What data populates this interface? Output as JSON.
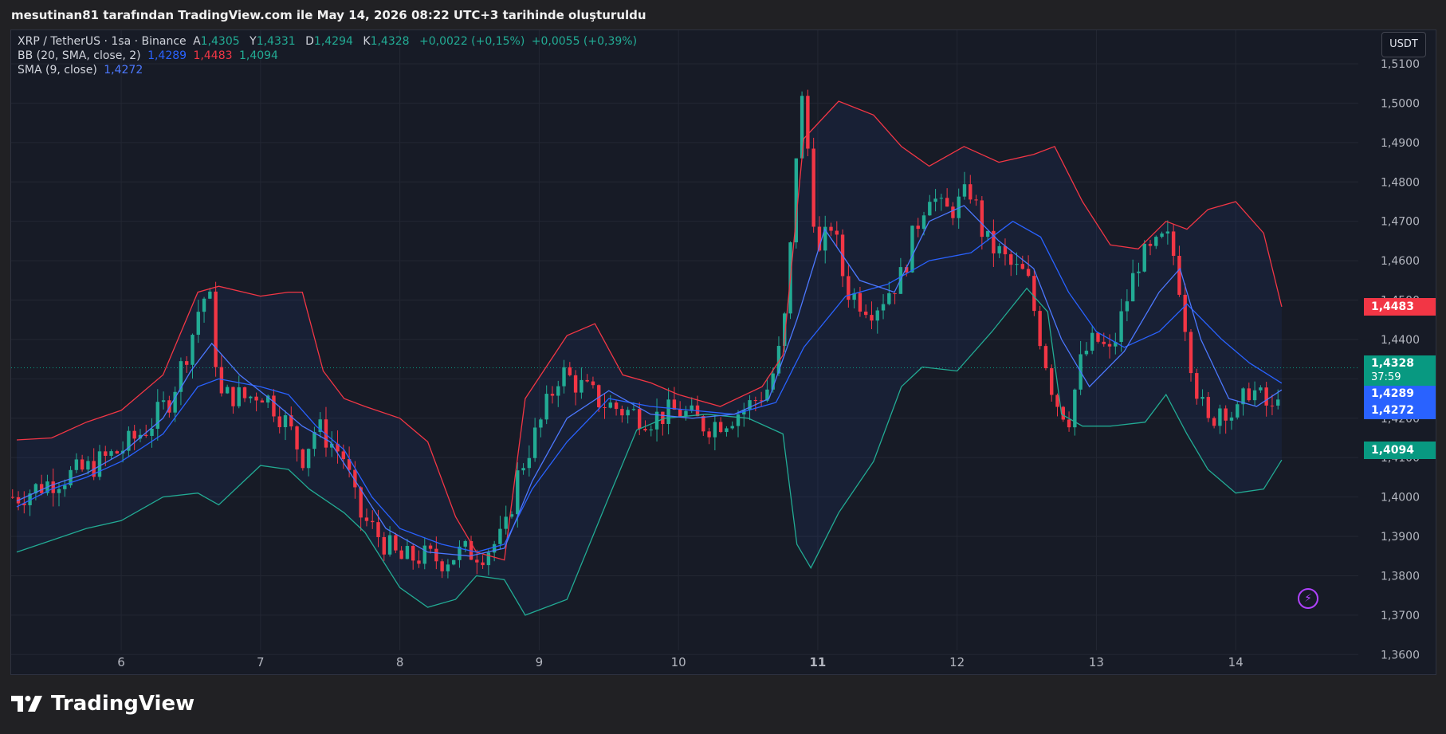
{
  "header": {
    "created_by": "mesutinan81 tarafından TradingView.com ile May 14, 2026 08:22 UTC+3 tarihinde oluşturuldu"
  },
  "legend": {
    "symbol": "XRP / TetherUS · 1sa · Binance",
    "o_label": "A",
    "o_value": "1,4305",
    "h_label": "Y",
    "h_value": "1,4331",
    "l_label": "D",
    "l_value": "1,4294",
    "c_label": "K",
    "c_value": "1,4328",
    "change": "+0,0022 (+0,15%)",
    "change2": "+0,0055 (+0,39%)",
    "bb_label": "BB (20, SMA, close, 2)",
    "bb_basis": "1,4289",
    "bb_upper": "1,4483",
    "bb_lower": "1,4094",
    "sma_label": "SMA (9, close)",
    "sma_value": "1,4272"
  },
  "currency_button": "USDT",
  "price_labels": {
    "upper": "1,4483",
    "last": "1,4328",
    "countdown": "37:59",
    "basis": "1,4289",
    "sma": "1,4272",
    "lower": "1,4094"
  },
  "brand": {
    "name": "TradingView"
  },
  "colors": {
    "up": "#22ab94",
    "down": "#f23645",
    "bb_basis": "#2962ff",
    "sma": "#4c78ff",
    "bb_upper": "#f23645",
    "bb_lower": "#22ab94"
  },
  "chart_data": {
    "type": "candlestick",
    "symbol": "XRP / TetherUS",
    "interval": "1sa",
    "exchange": "Binance",
    "yticks": [
      "1,3600",
      "1,3700",
      "1,3800",
      "1,3900",
      "1,4000",
      "1,4100",
      "1,4200",
      "1,4300",
      "1,4400",
      "1,4500",
      "1,4600",
      "1,4700",
      "1,4800",
      "1,4900",
      "1,5000",
      "1,5100"
    ],
    "ylim": [
      1.355,
      1.5185
    ],
    "xticks": [
      "6",
      "7",
      "8",
      "9",
      "10",
      "11",
      "12",
      "13",
      "14"
    ],
    "grid": true,
    "last_close": 1.4328,
    "close_path": [
      [
        5.25,
        1.4
      ],
      [
        5.5,
        1.404
      ],
      [
        5.75,
        1.407
      ],
      [
        6.0,
        1.412
      ],
      [
        6.2,
        1.418
      ],
      [
        6.35,
        1.425
      ],
      [
        6.5,
        1.44
      ],
      [
        6.58,
        1.451
      ],
      [
        6.65,
        1.449
      ],
      [
        6.7,
        1.425
      ],
      [
        6.8,
        1.426
      ],
      [
        6.9,
        1.425
      ],
      [
        7.0,
        1.427
      ],
      [
        7.1,
        1.423
      ],
      [
        7.2,
        1.418
      ],
      [
        7.3,
        1.41
      ],
      [
        7.4,
        1.418
      ],
      [
        7.5,
        1.414
      ],
      [
        7.6,
        1.41
      ],
      [
        7.7,
        1.396
      ],
      [
        7.8,
        1.392
      ],
      [
        7.9,
        1.388
      ],
      [
        8.0,
        1.384
      ],
      [
        8.15,
        1.385
      ],
      [
        8.3,
        1.384
      ],
      [
        8.45,
        1.386
      ],
      [
        8.6,
        1.386
      ],
      [
        8.75,
        1.39
      ],
      [
        8.85,
        1.406
      ],
      [
        9.0,
        1.418
      ],
      [
        9.15,
        1.432
      ],
      [
        9.3,
        1.428
      ],
      [
        9.45,
        1.424
      ],
      [
        9.6,
        1.422
      ],
      [
        9.8,
        1.42
      ],
      [
        10.0,
        1.422
      ],
      [
        10.2,
        1.418
      ],
      [
        10.35,
        1.42
      ],
      [
        10.5,
        1.423
      ],
      [
        10.65,
        1.428
      ],
      [
        10.75,
        1.44
      ],
      [
        10.82,
        1.47
      ],
      [
        10.87,
        1.505
      ],
      [
        10.93,
        1.488
      ],
      [
        11.0,
        1.46
      ],
      [
        11.1,
        1.47
      ],
      [
        11.2,
        1.453
      ],
      [
        11.3,
        1.45
      ],
      [
        11.4,
        1.448
      ],
      [
        11.5,
        1.452
      ],
      [
        11.6,
        1.456
      ],
      [
        11.7,
        1.468
      ],
      [
        11.8,
        1.478
      ],
      [
        11.9,
        1.472
      ],
      [
        12.0,
        1.474
      ],
      [
        12.1,
        1.478
      ],
      [
        12.2,
        1.465
      ],
      [
        12.3,
        1.462
      ],
      [
        12.4,
        1.458
      ],
      [
        12.5,
        1.456
      ],
      [
        12.6,
        1.44
      ],
      [
        12.7,
        1.425
      ],
      [
        12.8,
        1.42
      ],
      [
        12.9,
        1.436
      ],
      [
        13.0,
        1.44
      ],
      [
        13.1,
        1.436
      ],
      [
        13.2,
        1.448
      ],
      [
        13.3,
        1.46
      ],
      [
        13.4,
        1.462
      ],
      [
        13.5,
        1.466
      ],
      [
        13.57,
        1.46
      ],
      [
        13.63,
        1.446
      ],
      [
        13.7,
        1.43
      ],
      [
        13.8,
        1.418
      ],
      [
        13.9,
        1.424
      ],
      [
        14.0,
        1.42
      ],
      [
        14.1,
        1.428
      ],
      [
        14.2,
        1.424
      ],
      [
        14.27,
        1.421
      ],
      [
        14.33,
        1.4328
      ]
    ],
    "bb_upper_path": [
      [
        5.25,
        1.4145
      ],
      [
        5.5,
        1.415
      ],
      [
        5.75,
        1.419
      ],
      [
        6.0,
        1.422
      ],
      [
        6.3,
        1.431
      ],
      [
        6.55,
        1.452
      ],
      [
        6.7,
        1.4535
      ],
      [
        7.0,
        1.451
      ],
      [
        7.2,
        1.452
      ],
      [
        7.3,
        1.452
      ],
      [
        7.45,
        1.432
      ],
      [
        7.6,
        1.425
      ],
      [
        7.75,
        1.423
      ],
      [
        8.0,
        1.42
      ],
      [
        8.2,
        1.414
      ],
      [
        8.4,
        1.395
      ],
      [
        8.55,
        1.386
      ],
      [
        8.75,
        1.384
      ],
      [
        8.9,
        1.425
      ],
      [
        9.2,
        1.441
      ],
      [
        9.4,
        1.444
      ],
      [
        9.6,
        1.431
      ],
      [
        9.8,
        1.429
      ],
      [
        10.0,
        1.426
      ],
      [
        10.3,
        1.423
      ],
      [
        10.6,
        1.428
      ],
      [
        10.75,
        1.436
      ],
      [
        10.9,
        1.491
      ],
      [
        11.15,
        1.5005
      ],
      [
        11.4,
        1.497
      ],
      [
        11.6,
        1.489
      ],
      [
        11.8,
        1.484
      ],
      [
        12.05,
        1.489
      ],
      [
        12.3,
        1.485
      ],
      [
        12.55,
        1.487
      ],
      [
        12.7,
        1.489
      ],
      [
        12.9,
        1.475
      ],
      [
        13.1,
        1.464
      ],
      [
        13.3,
        1.463
      ],
      [
        13.5,
        1.47
      ],
      [
        13.65,
        1.468
      ],
      [
        13.8,
        1.473
      ],
      [
        14.0,
        1.475
      ],
      [
        14.2,
        1.467
      ],
      [
        14.33,
        1.4483
      ]
    ],
    "bb_lower_path": [
      [
        5.25,
        1.386
      ],
      [
        5.5,
        1.389
      ],
      [
        5.75,
        1.392
      ],
      [
        6.0,
        1.394
      ],
      [
        6.3,
        1.4
      ],
      [
        6.55,
        1.401
      ],
      [
        6.7,
        1.398
      ],
      [
        7.0,
        1.408
      ],
      [
        7.2,
        1.407
      ],
      [
        7.35,
        1.402
      ],
      [
        7.6,
        1.396
      ],
      [
        7.75,
        1.391
      ],
      [
        8.0,
        1.377
      ],
      [
        8.2,
        1.372
      ],
      [
        8.4,
        1.374
      ],
      [
        8.55,
        1.38
      ],
      [
        8.75,
        1.379
      ],
      [
        8.9,
        1.37
      ],
      [
        9.2,
        1.374
      ],
      [
        9.5,
        1.4
      ],
      [
        9.7,
        1.417
      ],
      [
        9.9,
        1.42
      ],
      [
        10.2,
        1.421
      ],
      [
        10.5,
        1.42
      ],
      [
        10.75,
        1.416
      ],
      [
        10.85,
        1.388
      ],
      [
        10.95,
        1.382
      ],
      [
        11.15,
        1.396
      ],
      [
        11.4,
        1.409
      ],
      [
        11.6,
        1.428
      ],
      [
        11.75,
        1.433
      ],
      [
        12.0,
        1.432
      ],
      [
        12.25,
        1.442
      ],
      [
        12.5,
        1.453
      ],
      [
        12.65,
        1.447
      ],
      [
        12.75,
        1.421
      ],
      [
        12.9,
        1.418
      ],
      [
        13.1,
        1.418
      ],
      [
        13.35,
        1.419
      ],
      [
        13.5,
        1.426
      ],
      [
        13.65,
        1.416
      ],
      [
        13.8,
        1.407
      ],
      [
        14.0,
        1.401
      ],
      [
        14.2,
        1.402
      ],
      [
        14.33,
        1.4094
      ]
    ],
    "bb_basis_path": [
      [
        5.25,
        1.3975
      ],
      [
        5.5,
        1.402
      ],
      [
        5.75,
        1.405
      ],
      [
        6.0,
        1.409
      ],
      [
        6.3,
        1.416
      ],
      [
        6.55,
        1.428
      ],
      [
        6.7,
        1.43
      ],
      [
        7.0,
        1.428
      ],
      [
        7.2,
        1.426
      ],
      [
        7.4,
        1.418
      ],
      [
        7.6,
        1.412
      ],
      [
        7.8,
        1.4
      ],
      [
        8.0,
        1.392
      ],
      [
        8.3,
        1.388
      ],
      [
        8.55,
        1.386
      ],
      [
        8.75,
        1.388
      ],
      [
        8.95,
        1.402
      ],
      [
        9.2,
        1.414
      ],
      [
        9.5,
        1.425
      ],
      [
        9.8,
        1.423
      ],
      [
        10.1,
        1.422
      ],
      [
        10.4,
        1.421
      ],
      [
        10.7,
        1.424
      ],
      [
        10.9,
        1.438
      ],
      [
        11.2,
        1.451
      ],
      [
        11.5,
        1.454
      ],
      [
        11.8,
        1.46
      ],
      [
        12.1,
        1.462
      ],
      [
        12.4,
        1.47
      ],
      [
        12.6,
        1.466
      ],
      [
        12.8,
        1.452
      ],
      [
        13.0,
        1.442
      ],
      [
        13.2,
        1.438
      ],
      [
        13.45,
        1.442
      ],
      [
        13.65,
        1.449
      ],
      [
        13.9,
        1.44
      ],
      [
        14.1,
        1.434
      ],
      [
        14.33,
        1.4289
      ]
    ],
    "sma_path": [
      [
        5.25,
        1.399
      ],
      [
        5.5,
        1.403
      ],
      [
        5.75,
        1.406
      ],
      [
        6.0,
        1.411
      ],
      [
        6.3,
        1.42
      ],
      [
        6.5,
        1.432
      ],
      [
        6.65,
        1.439
      ],
      [
        6.85,
        1.431
      ],
      [
        7.1,
        1.424
      ],
      [
        7.3,
        1.418
      ],
      [
        7.5,
        1.414
      ],
      [
        7.7,
        1.403
      ],
      [
        7.9,
        1.392
      ],
      [
        8.2,
        1.386
      ],
      [
        8.5,
        1.385
      ],
      [
        8.75,
        1.387
      ],
      [
        8.95,
        1.404
      ],
      [
        9.2,
        1.42
      ],
      [
        9.5,
        1.427
      ],
      [
        9.8,
        1.421
      ],
      [
        10.1,
        1.42
      ],
      [
        10.4,
        1.421
      ],
      [
        10.65,
        1.425
      ],
      [
        10.85,
        1.445
      ],
      [
        11.05,
        1.468
      ],
      [
        11.3,
        1.455
      ],
      [
        11.55,
        1.452
      ],
      [
        11.8,
        1.47
      ],
      [
        12.05,
        1.474
      ],
      [
        12.3,
        1.465
      ],
      [
        12.55,
        1.458
      ],
      [
        12.75,
        1.44
      ],
      [
        12.95,
        1.428
      ],
      [
        13.2,
        1.437
      ],
      [
        13.45,
        1.452
      ],
      [
        13.6,
        1.458
      ],
      [
        13.75,
        1.44
      ],
      [
        13.95,
        1.425
      ],
      [
        14.15,
        1.423
      ],
      [
        14.33,
        1.4272
      ]
    ]
  }
}
